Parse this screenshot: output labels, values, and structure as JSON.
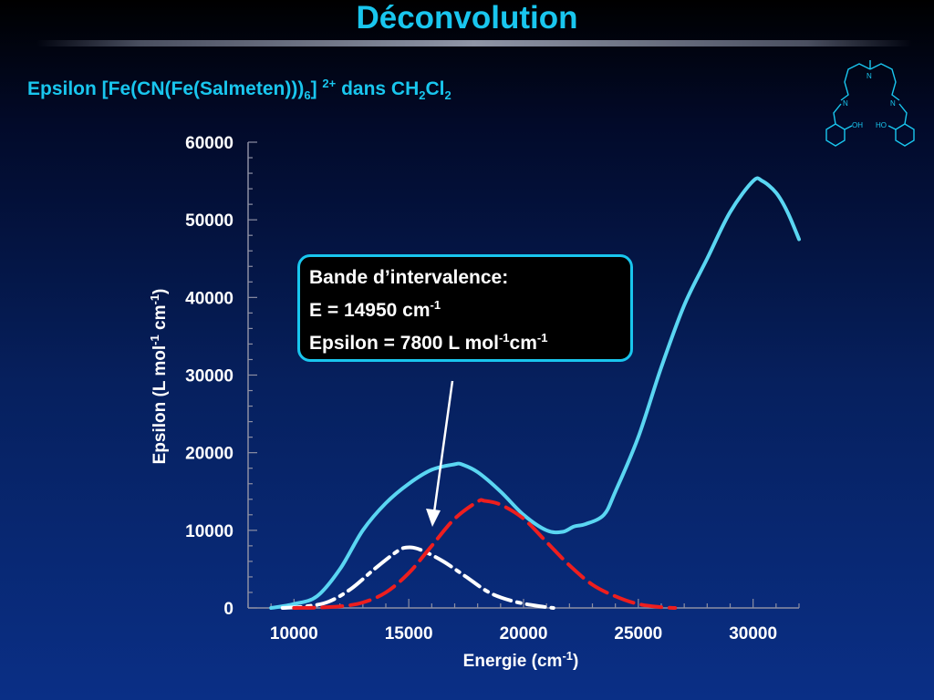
{
  "slide": {
    "title": "Déconvolution",
    "subtitle": {
      "prefix": "Epsilon [Fe(CN(Fe(Salmeten)))",
      "sub1": "6",
      "mid": "]",
      "sup1": "2+",
      "text2": " dans CH",
      "sub2": "2",
      "text3": "Cl",
      "sub3": "2"
    }
  },
  "annotation": {
    "line1": "Bande d’intervalence:",
    "line2_text": "E = 14950 cm",
    "line2_sup": "-1",
    "line3_text": "Epsilon = 7800 L mol",
    "line3_sup1": "-1",
    "line3_text2": "cm",
    "line3_sup2": "-1"
  },
  "molecule": {
    "label_oh": "OH",
    "label_ho": "HO",
    "label_n1": "N",
    "label_n2": "N",
    "label_n3": "N"
  },
  "chart_data": {
    "type": "line",
    "xlabel": "Energie (cm-1)",
    "ylabel": "Epsilon (L mol-1 cm-1)",
    "xlim": [
      8000,
      32000
    ],
    "ylim": [
      0,
      60000
    ],
    "xticks": [
      10000,
      15000,
      20000,
      25000,
      30000
    ],
    "yticks": [
      0,
      10000,
      20000,
      30000,
      40000,
      50000,
      60000
    ],
    "grid": false,
    "series": [
      {
        "style": "solid",
        "color": "#5ad6f2",
        "x": [
          9000,
          10000,
          11000,
          12000,
          13000,
          14000,
          15000,
          16000,
          17000,
          17300,
          18000,
          19000,
          20000,
          21000,
          21700,
          22200,
          22700,
          23500,
          24000,
          25000,
          26000,
          27000,
          28000,
          29000,
          30000,
          30400,
          31000,
          31500,
          32000
        ],
        "y": [
          0,
          500,
          1500,
          5000,
          10000,
          13500,
          16000,
          17800,
          18500,
          18500,
          17500,
          15000,
          12000,
          10000,
          9800,
          10500,
          10800,
          12000,
          15000,
          22000,
          31000,
          39000,
          45000,
          51000,
          55000,
          55000,
          53500,
          51000,
          47500
        ]
      },
      {
        "style": "dash-dot",
        "color": "#ffffff",
        "x": [
          9500,
          10500,
          11500,
          12500,
          13500,
          14500,
          14950,
          15500,
          16500,
          17500,
          18500,
          19500,
          20500,
          21300
        ],
        "y": [
          0,
          200,
          800,
          2500,
          5000,
          7300,
          7800,
          7500,
          6000,
          4000,
          2000,
          900,
          300,
          0
        ]
      },
      {
        "style": "dashed",
        "color": "#ee1e1e",
        "x": [
          10000,
          11000,
          12000,
          13000,
          14000,
          15000,
          16000,
          17000,
          18000,
          18300,
          19000,
          20000,
          21000,
          22000,
          23000,
          24000,
          25000,
          26000,
          26600
        ],
        "y": [
          0,
          50,
          200,
          700,
          2000,
          4500,
          8000,
          11500,
          13700,
          13800,
          13300,
          11500,
          8500,
          5500,
          3000,
          1500,
          500,
          100,
          0
        ]
      }
    ]
  }
}
